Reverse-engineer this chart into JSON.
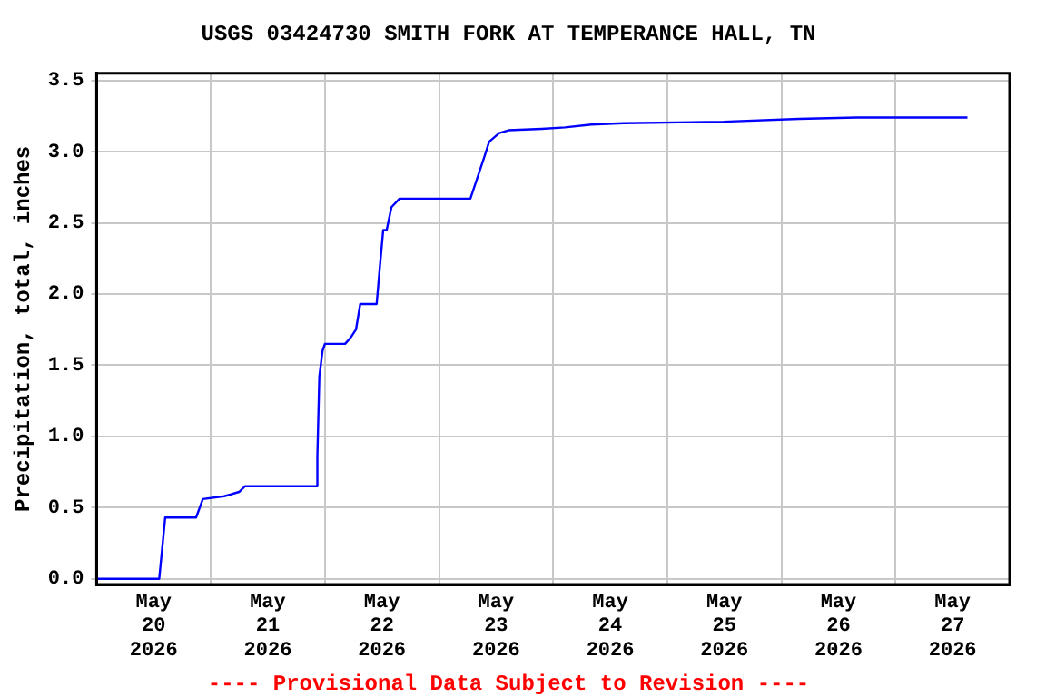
{
  "chart_data": {
    "type": "line",
    "title": "USGS 03424730 SMITH FORK AT TEMPERANCE HALL, TN",
    "ylabel": "Precipitation, total, inches",
    "annotations": [
      "---- Provisional Data Subject to Revision ----"
    ],
    "x": [
      "2026-05-20T00:00",
      "2026-05-20T13:10",
      "2026-05-20T14:25",
      "2026-05-20T20:55",
      "2026-05-20T22:20",
      "2026-05-21T02:50",
      "2026-05-21T05:58",
      "2026-05-21T07:12",
      "2026-05-21T22:08",
      "2026-05-21T22:25",
      "2026-05-21T22:50",
      "2026-05-21T23:30",
      "2026-05-22T00:00",
      "2026-05-22T04:15",
      "2026-05-22T05:20",
      "2026-05-22T06:32",
      "2026-05-22T07:26",
      "2026-05-22T10:53",
      "2026-05-22T11:35",
      "2026-05-22T12:16",
      "2026-05-22T13:00",
      "2026-05-22T14:00",
      "2026-05-22T15:42",
      "2026-05-23T06:36",
      "2026-05-23T08:00",
      "2026-05-23T09:30",
      "2026-05-23T10:33",
      "2026-05-23T12:40",
      "2026-05-23T14:37",
      "2026-05-23T21:36",
      "2026-05-24T02:30",
      "2026-05-24T08:04",
      "2026-05-24T14:48",
      "2026-05-25T11:50",
      "2026-05-26T03:43",
      "2026-05-26T15:50",
      "2026-05-27T15:07"
    ],
    "series": [
      {
        "color": "#0000ff",
        "values": [
          0.0,
          0.0,
          0.43,
          0.43,
          0.56,
          0.58,
          0.61,
          0.65,
          0.65,
          0.86,
          1.42,
          1.6,
          1.65,
          1.65,
          1.69,
          1.75,
          1.93,
          1.93,
          2.2,
          2.45,
          2.45,
          2.61,
          2.67,
          2.67,
          2.81,
          2.96,
          3.07,
          3.13,
          3.15,
          3.16,
          3.17,
          3.19,
          3.2,
          3.21,
          3.23,
          3.24,
          3.24
        ]
      }
    ],
    "xlim": [
      "2026-05-20T00:00",
      "2026-05-28T00:00"
    ],
    "xticks": [
      {
        "value": "2026-05-20T12:00",
        "label": "May\n20\n2026"
      },
      {
        "value": "2026-05-21T00:00",
        "label": null
      },
      {
        "value": "2026-05-21T12:00",
        "label": "May\n21\n2026"
      },
      {
        "value": "2026-05-22T00:00",
        "label": null
      },
      {
        "value": "2026-05-22T12:00",
        "label": "May\n22\n2026"
      },
      {
        "value": "2026-05-23T00:00",
        "label": null
      },
      {
        "value": "2026-05-23T12:00",
        "label": "May\n23\n2026"
      },
      {
        "value": "2026-05-24T00:00",
        "label": null
      },
      {
        "value": "2026-05-24T12:00",
        "label": "May\n24\n2026"
      },
      {
        "value": "2026-05-25T00:00",
        "label": null
      },
      {
        "value": "2026-05-25T12:00",
        "label": "May\n25\n2026"
      },
      {
        "value": "2026-05-26T00:00",
        "label": null
      },
      {
        "value": "2026-05-26T12:00",
        "label": "May\n26\n2026"
      },
      {
        "value": "2026-05-27T00:00",
        "label": null
      },
      {
        "value": "2026-05-27T12:00",
        "label": "May\n27\n2026"
      }
    ],
    "ylim": [
      -0.04,
      3.55
    ],
    "yticks": [
      {
        "value": 0,
        "label": "0.0"
      },
      {
        "value": 0.5,
        "label": "0.5"
      },
      {
        "value": 1,
        "label": "1.0"
      },
      {
        "value": 1.5,
        "label": "1.5"
      },
      {
        "value": 2,
        "label": "2.0"
      },
      {
        "value": 2.5,
        "label": "2.5"
      },
      {
        "value": 3,
        "label": "3.0"
      },
      {
        "value": 3.5,
        "label": "3.5"
      }
    ],
    "grid": true,
    "legend": false,
    "marker": "none",
    "line_style": "solid"
  }
}
